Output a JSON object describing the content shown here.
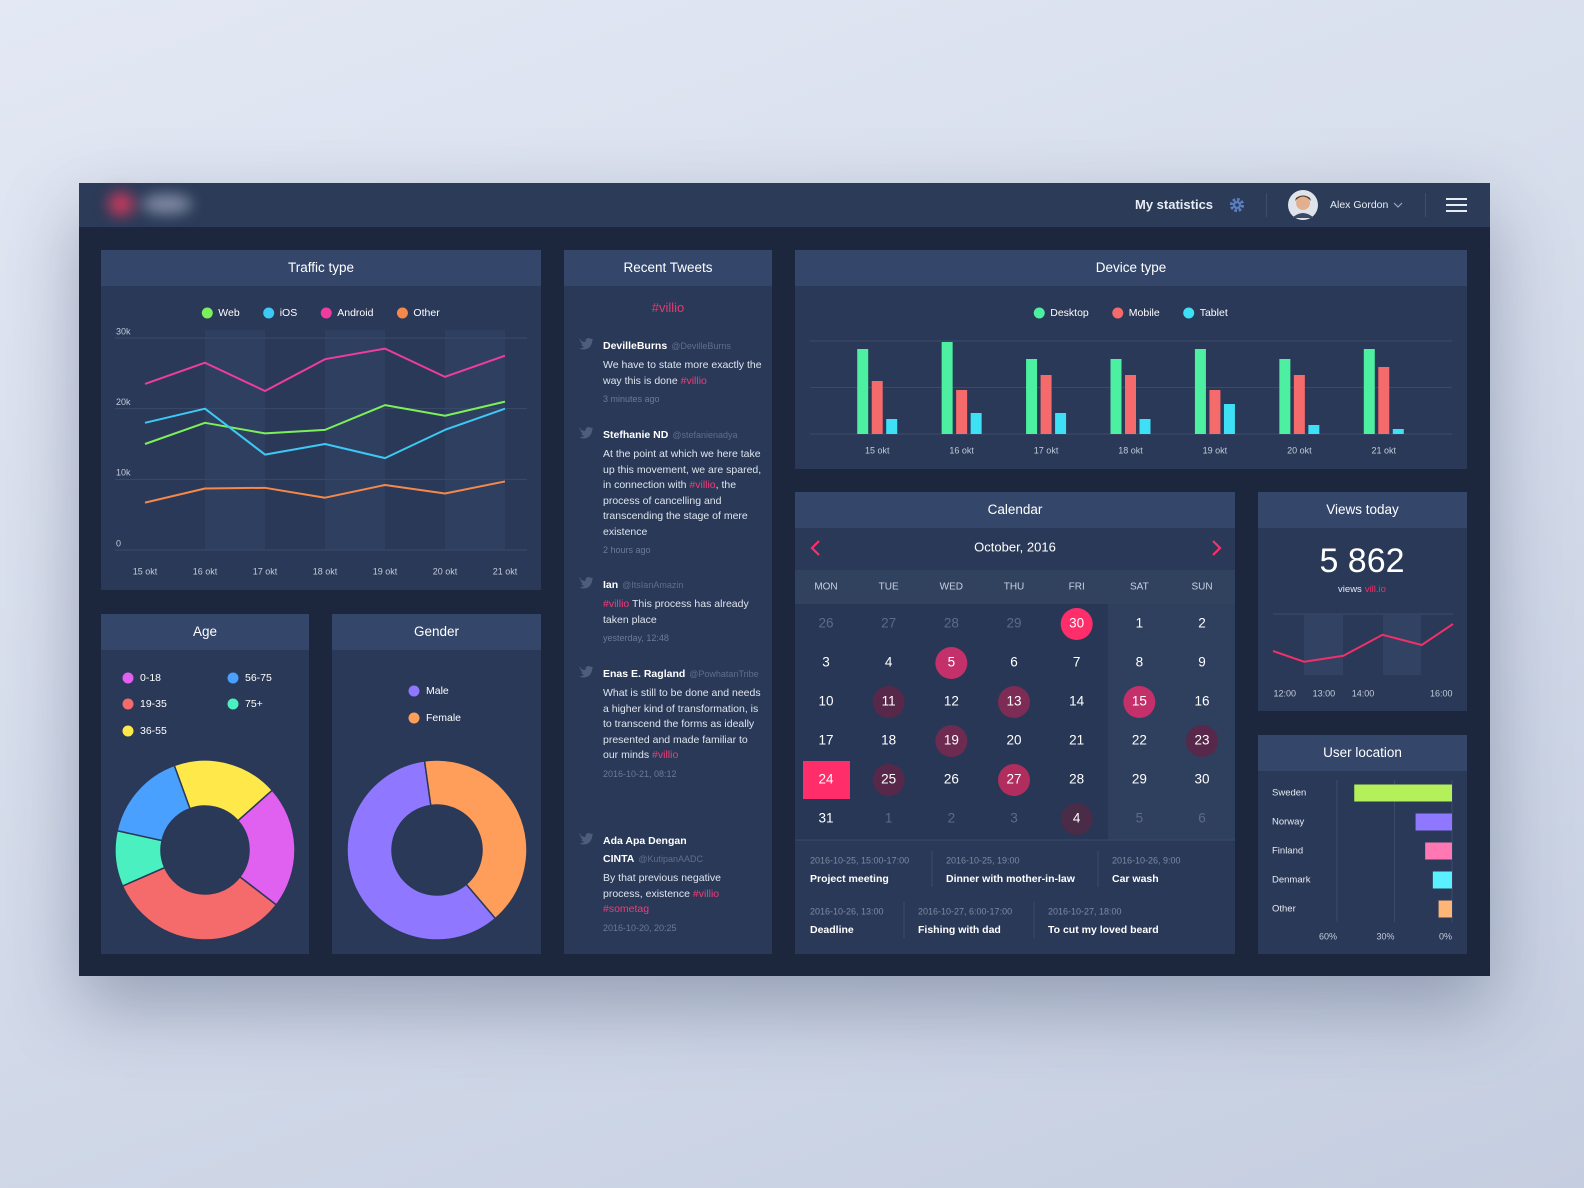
{
  "header": {
    "title": "My statistics",
    "user": "Alex Gordon"
  },
  "tweets": {
    "title": "Recent Tweets",
    "hashtag": "#villio",
    "items": [
      {
        "name": "DevilleBurns",
        "handle": "@DevilleBurns",
        "text": [
          "We have to state more exactly the way this is done ",
          "#villio"
        ],
        "time": "3 minutes ago"
      },
      {
        "name": "Stefhanie ND",
        "handle": "@stefanienadya",
        "text": [
          "At the point at which we here take up this movement, we are spared, in connection with ",
          "#villio",
          ", the process of cancelling and transcending the stage of mere existence"
        ],
        "time": "2 hours ago"
      },
      {
        "name": "Ian",
        "handle": "@ItsIanAmazin",
        "text": [
          "#villio",
          " This process has already taken place"
        ],
        "time": "yesterday, 12:48"
      },
      {
        "name": "Enas E. Ragland",
        "handle": "@PowhatanTribe",
        "text": [
          "What is still to be done and needs a higher kind of transformation, is to transcend the forms as ideally presented and made familiar to our minds ",
          "#villio"
        ],
        "time": "2016-10-21, 08:12"
      },
      {
        "name": "Ada Apa Dengan CINTA",
        "handle": "@KutipanAADC",
        "text": [
          "By that previous negative process, existence ",
          "#villio",
          " #sometag"
        ],
        "time": "2016-10-20, 20:25"
      }
    ]
  },
  "calendar": {
    "title": "Calendar",
    "month": "October, 2016",
    "weekdays": [
      "MON",
      "TUE",
      "WED",
      "THU",
      "FRI",
      "SAT",
      "SUN"
    ],
    "weeks": [
      [
        {
          "day": 26,
          "muted": true
        },
        {
          "day": 27,
          "muted": true
        },
        {
          "day": 28,
          "muted": true
        },
        {
          "day": 29,
          "muted": true
        },
        {
          "day": 30,
          "muted": true,
          "color": "#ff2d6a"
        },
        {
          "day": 1
        },
        {
          "day": 2
        }
      ],
      [
        {
          "day": 3
        },
        {
          "day": 4
        },
        {
          "day": 5,
          "color": "#c4306a"
        },
        {
          "day": 6
        },
        {
          "day": 7
        },
        {
          "day": 8
        },
        {
          "day": 9
        }
      ],
      [
        {
          "day": 10
        },
        {
          "day": 11,
          "color": "#57284a"
        },
        {
          "day": 12
        },
        {
          "day": 13,
          "color": "#7d2c55"
        },
        {
          "day": 14
        },
        {
          "day": 15,
          "color": "#c4306a"
        },
        {
          "day": 16
        }
      ],
      [
        {
          "day": 17
        },
        {
          "day": 18
        },
        {
          "day": 19,
          "color": "#6e2b52"
        },
        {
          "day": 20
        },
        {
          "day": 21
        },
        {
          "day": 22
        },
        {
          "day": 23,
          "color": "#57284a"
        }
      ],
      [
        {
          "day": 24,
          "color": "#ff2d6a",
          "shape": "square"
        },
        {
          "day": 25,
          "color": "#57284a"
        },
        {
          "day": 26
        },
        {
          "day": 27,
          "color": "#b02d5e"
        },
        {
          "day": 28
        },
        {
          "day": 29
        },
        {
          "day": 30
        }
      ],
      [
        {
          "day": 31
        },
        {
          "day": 1,
          "muted": true
        },
        {
          "day": 2,
          "muted": true
        },
        {
          "day": 3,
          "muted": true
        },
        {
          "day": 4,
          "muted": true,
          "color": "#4a2b48"
        },
        {
          "day": 5,
          "muted": true
        },
        {
          "day": 6,
          "muted": true
        }
      ]
    ],
    "events": [
      [
        {
          "time": "2016-10-25, 15:00-17:00",
          "title": "Project meeting"
        },
        {
          "time": "2016-10-25, 19:00",
          "title": "Dinner with mother-in-law"
        },
        {
          "time": "2016-10-26, 9:00",
          "title": "Car wash"
        }
      ],
      [
        {
          "time": "2016-10-26, 13:00",
          "title": "Deadline"
        },
        {
          "time": "2016-10-27, 6:00-17:00",
          "title": "Fishing with dad"
        },
        {
          "time": "2016-10-27, 18:00",
          "title": "To cut my loved beard"
        }
      ]
    ]
  },
  "chart_data": [
    {
      "type": "line",
      "title": "Traffic type",
      "categories": [
        "15 okt",
        "16 okt",
        "17 okt",
        "18 okt",
        "19 okt",
        "20 okt",
        "21 okt"
      ],
      "series": [
        {
          "name": "Web",
          "color": "#7cf05a",
          "values": [
            15000,
            18000,
            16500,
            17000,
            20500,
            19000,
            21000
          ]
        },
        {
          "name": "iOS",
          "color": "#3ec8f5",
          "values": [
            18000,
            20000,
            13500,
            15000,
            13000,
            17000,
            20000
          ]
        },
        {
          "name": "Android",
          "color": "#f03ca0",
          "values": [
            23500,
            26500,
            22500,
            27000,
            28500,
            24500,
            27500
          ]
        },
        {
          "name": "Other",
          "color": "#f5884a",
          "values": [
            6700,
            8700,
            8800,
            7400,
            9200,
            8000,
            9700
          ]
        }
      ],
      "ylim": [
        0,
        30000
      ],
      "yticks": [
        0,
        {
          "value": 10000,
          "label": "10k"
        },
        {
          "value": 20000,
          "label": "20k"
        },
        {
          "value": 30000,
          "label": "30k"
        }
      ],
      "grid": true,
      "legend": "top"
    },
    {
      "type": "bar",
      "title": "Device type",
      "categories": [
        "15 okt",
        "16 okt",
        "17 okt",
        "18 okt",
        "19 okt",
        "20 okt",
        "21 okt"
      ],
      "series": [
        {
          "name": "Desktop",
          "color": "#4cf0a0",
          "values": [
            85,
            92,
            75,
            75,
            85,
            75,
            85
          ]
        },
        {
          "name": "Mobile",
          "color": "#f56a6a",
          "values": [
            53,
            44,
            59,
            59,
            44,
            59,
            67
          ]
        },
        {
          "name": "Tablet",
          "color": "#3ee0f5",
          "values": [
            15,
            21,
            21,
            15,
            30,
            9,
            5
          ]
        }
      ],
      "ylim": [
        0,
        93
      ],
      "grid": true,
      "legend": "top"
    },
    {
      "type": "line",
      "title": "Views today",
      "total": {
        "value": 5862,
        "label": "5 862"
      },
      "caption": "views",
      "source": "vill.io",
      "x": [
        11.7,
        12.5,
        13.5,
        14.5,
        15.5,
        16.3
      ],
      "values": [
        40,
        22,
        32,
        67,
        50,
        85
      ],
      "color": "#f0306a",
      "xlim": [
        11.7,
        16.3
      ],
      "xticks": [
        {
          "value": 12,
          "label": "12:00"
        },
        {
          "value": 13,
          "label": "13:00"
        },
        {
          "value": 14,
          "label": "14:00"
        },
        {
          "value": 16,
          "label": "16:00"
        }
      ],
      "ylim": [
        0,
        100
      ]
    },
    {
      "type": "donut",
      "title": "Age",
      "categories": [
        "0-18",
        "19-35",
        "36-55",
        "56-75",
        "75+"
      ],
      "values": [
        22,
        33,
        19,
        16,
        10
      ],
      "colors": [
        "#e060f0",
        "#f56a6a",
        "#ffe84a",
        "#4aa0ff",
        "#4af0c0"
      ]
    },
    {
      "type": "donut",
      "title": "Gender",
      "categories": [
        "Male",
        "Female"
      ],
      "values": [
        59,
        41
      ],
      "colors": [
        "#8f78ff",
        "#ff9d5a"
      ]
    },
    {
      "type": "hbar",
      "title": "User location",
      "categories": [
        "Sweden",
        "Norway",
        "Finland",
        "Denmark",
        "Other"
      ],
      "values": [
        51,
        19,
        14,
        10,
        7
      ],
      "colors": [
        "#b4f05a",
        "#8f78ff",
        "#ff78b4",
        "#5af0ff",
        "#ffb478"
      ],
      "xlim": [
        60,
        0
      ],
      "xticks": [
        {
          "value": 60,
          "label": "60%"
        },
        {
          "value": 30,
          "label": "30%"
        },
        {
          "value": 0,
          "label": "0%"
        }
      ],
      "grid": true
    }
  ]
}
